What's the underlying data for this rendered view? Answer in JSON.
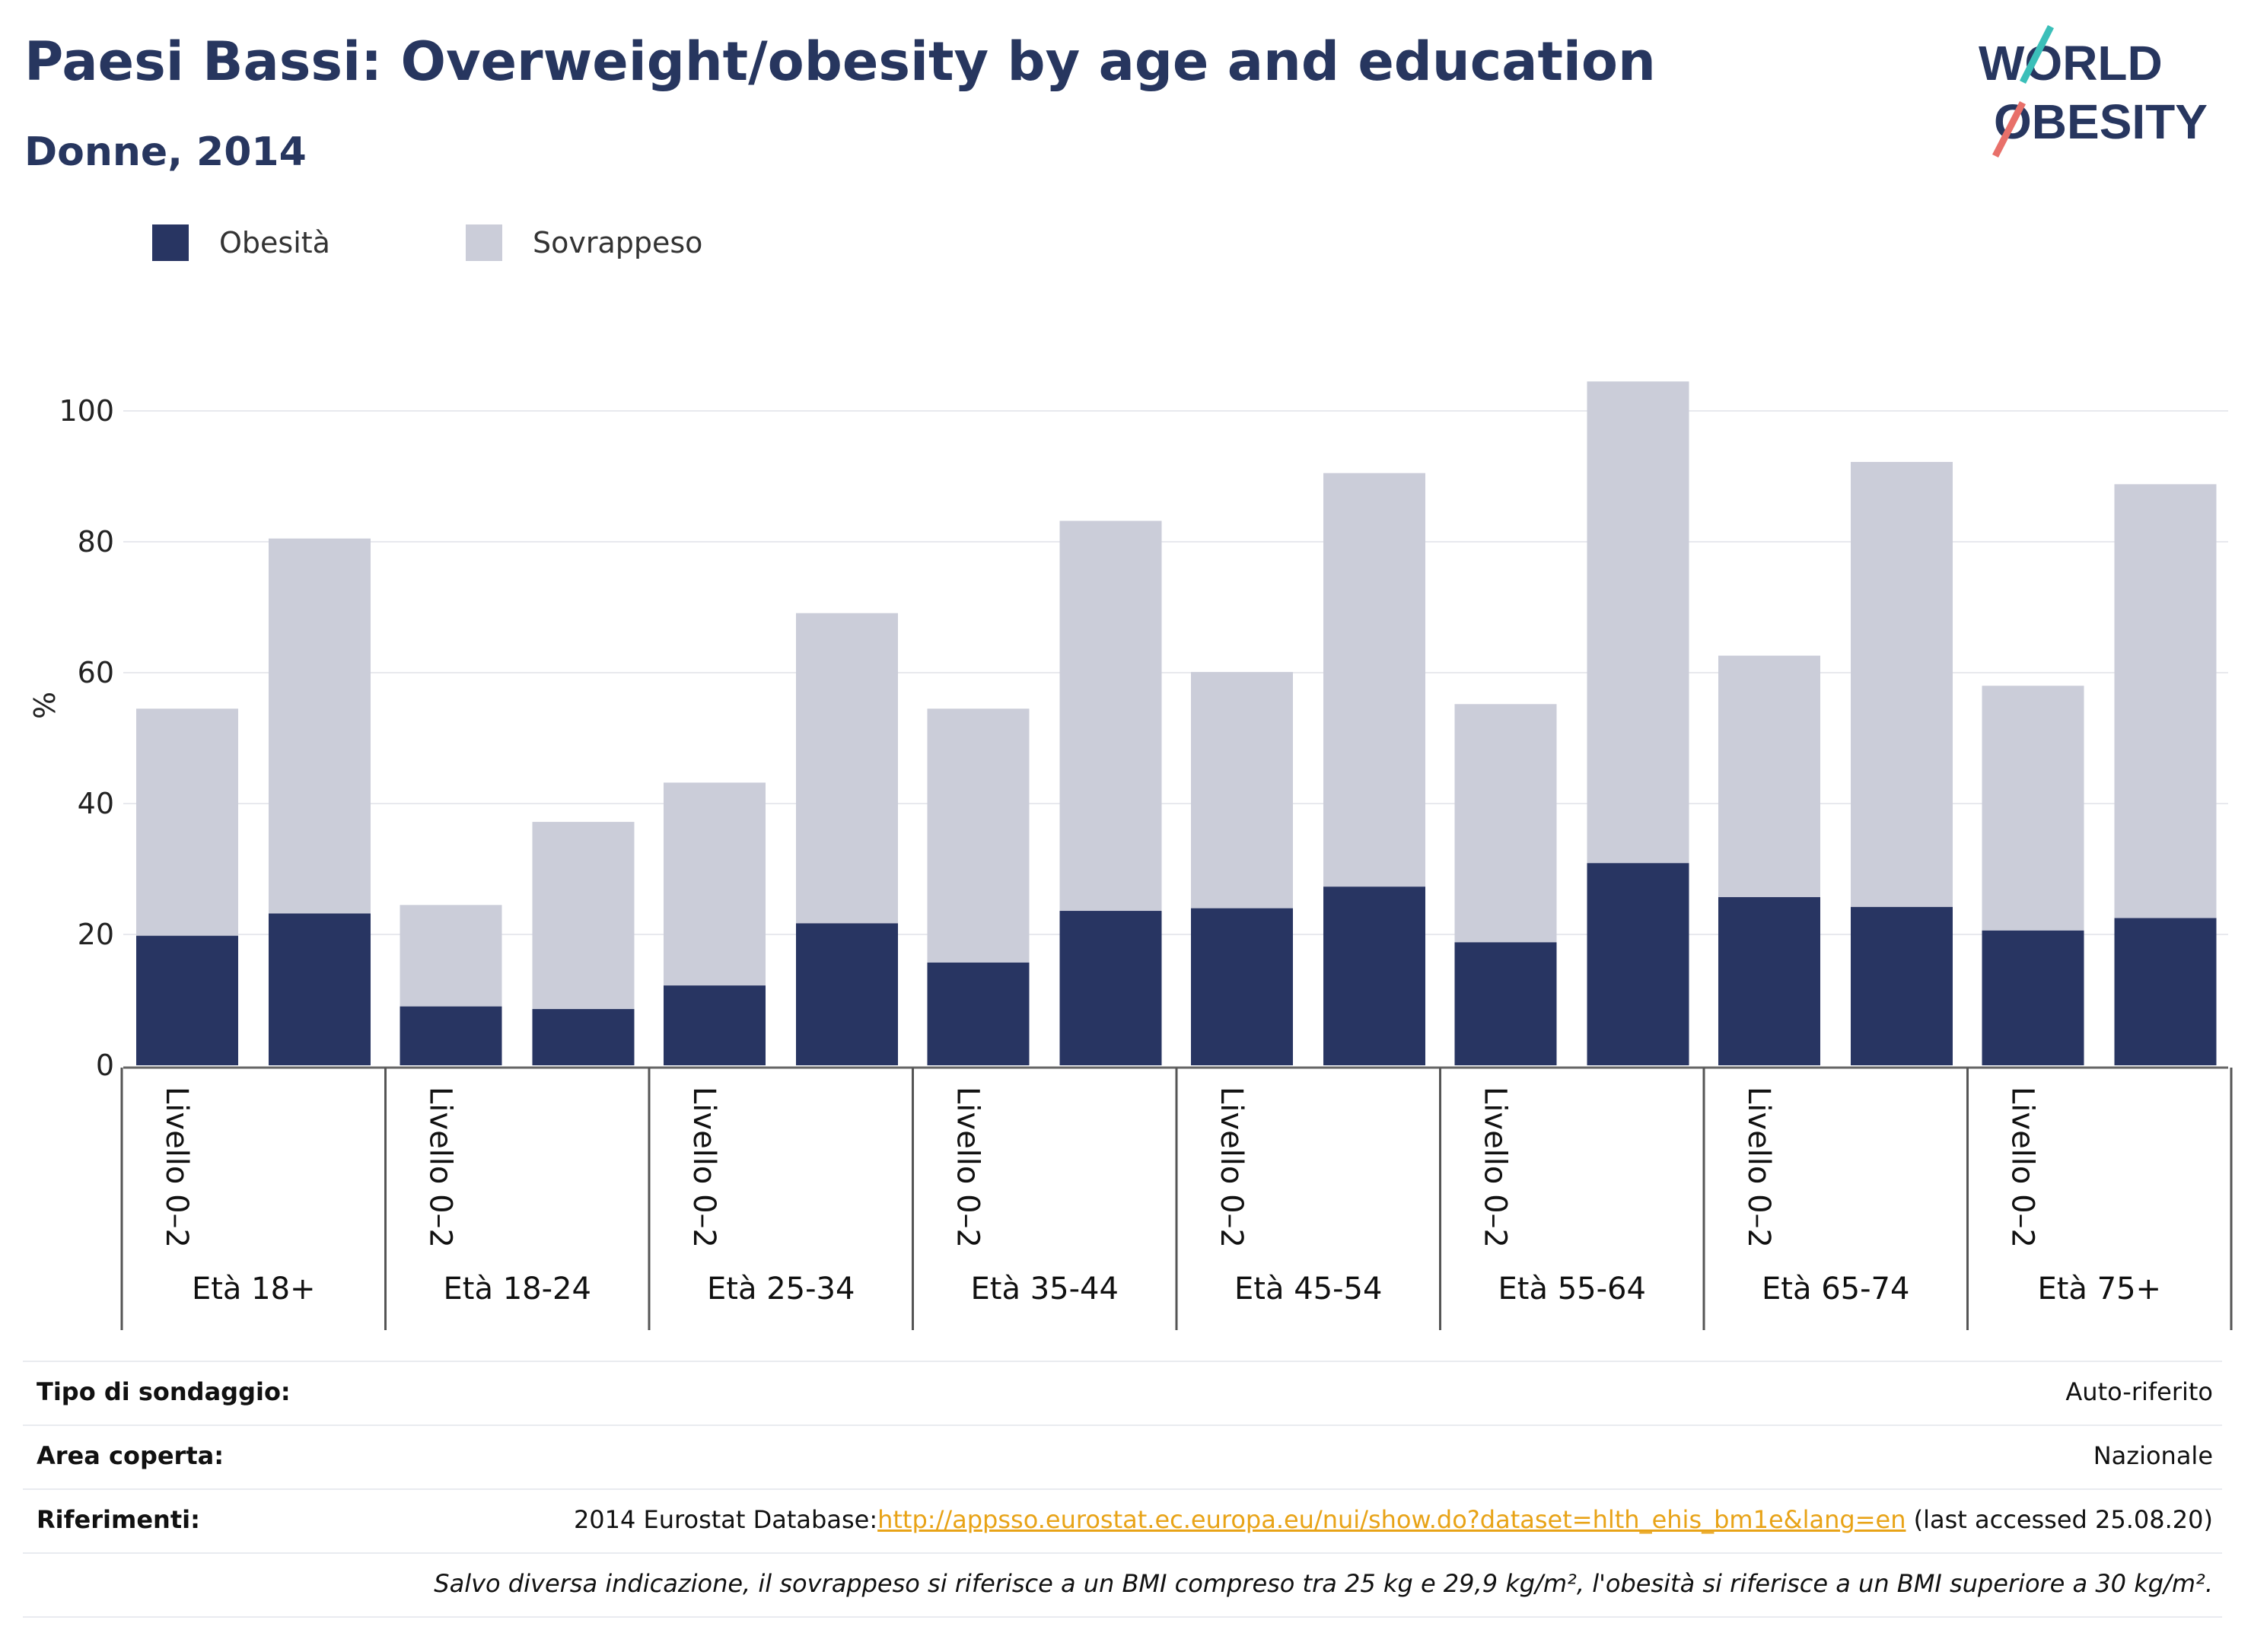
{
  "header": {
    "title": "Paesi Bassi: Overweight/obesity by age and education",
    "subtitle": "Donne, 2014"
  },
  "logo": {
    "line1": "WORLD",
    "line2": "OBESITY",
    "accent_teal": "#3bbfb9",
    "accent_coral": "#e8706a"
  },
  "colors": {
    "obesity": "#283562",
    "overweight": "#cbcdd9",
    "text_dark": "#27365f"
  },
  "legend": [
    {
      "label": "Obesità",
      "color": "#283562"
    },
    {
      "label": "Sovrappeso",
      "color": "#cbcdd9"
    }
  ],
  "chart_data": {
    "type": "bar",
    "stacked": true,
    "ylabel": "%",
    "ylim": [
      0,
      110
    ],
    "yticks": [
      0,
      20,
      40,
      60,
      80,
      100
    ],
    "grid": true,
    "legend_position": "top-left",
    "groups": [
      "Età 18+",
      "Età 18-24",
      "Età 25-34",
      "Età 35-44",
      "Età 45-54",
      "Età 55-64",
      "Età 65-74",
      "Età 75+"
    ],
    "bar_labels": [
      "Livello 0–2",
      ""
    ],
    "series": [
      {
        "name": "Obesità",
        "values": [
          [
            19.8,
            23.2
          ],
          [
            9.0,
            8.6
          ],
          [
            12.2,
            21.7
          ],
          [
            15.7,
            23.6
          ],
          [
            24.0,
            27.3
          ],
          [
            18.8,
            30.9
          ],
          [
            25.7,
            24.2
          ],
          [
            20.6,
            22.5
          ]
        ]
      },
      {
        "name": "Sovrappeso",
        "values": [
          [
            34.7,
            57.3
          ],
          [
            15.5,
            28.6
          ],
          [
            31.0,
            47.4
          ],
          [
            38.8,
            59.6
          ],
          [
            36.1,
            63.2
          ],
          [
            36.4,
            73.6
          ],
          [
            36.9,
            68.0
          ],
          [
            37.4,
            66.3
          ]
        ]
      }
    ]
  },
  "info": [
    {
      "key": "Tipo di sondaggio:",
      "value": "Auto-riferito"
    },
    {
      "key": "Area coperta:",
      "value": "Nazionale"
    },
    {
      "key": "Riferimenti:",
      "prefix": "2014 Eurostat Database:",
      "link": "http://appsso.eurostat.ec.europa.eu/nui/show.do?dataset=hlth_ehis_bm1e&lang=en",
      "suffix": " (last accessed 25.08.20)"
    }
  ],
  "footnote": "Salvo diversa indicazione, il sovrappeso si riferisce a un BMI compreso tra 25 kg e 29,9 kg/m², l'obesità si riferisce a un BMI superiore a 30 kg/m²."
}
